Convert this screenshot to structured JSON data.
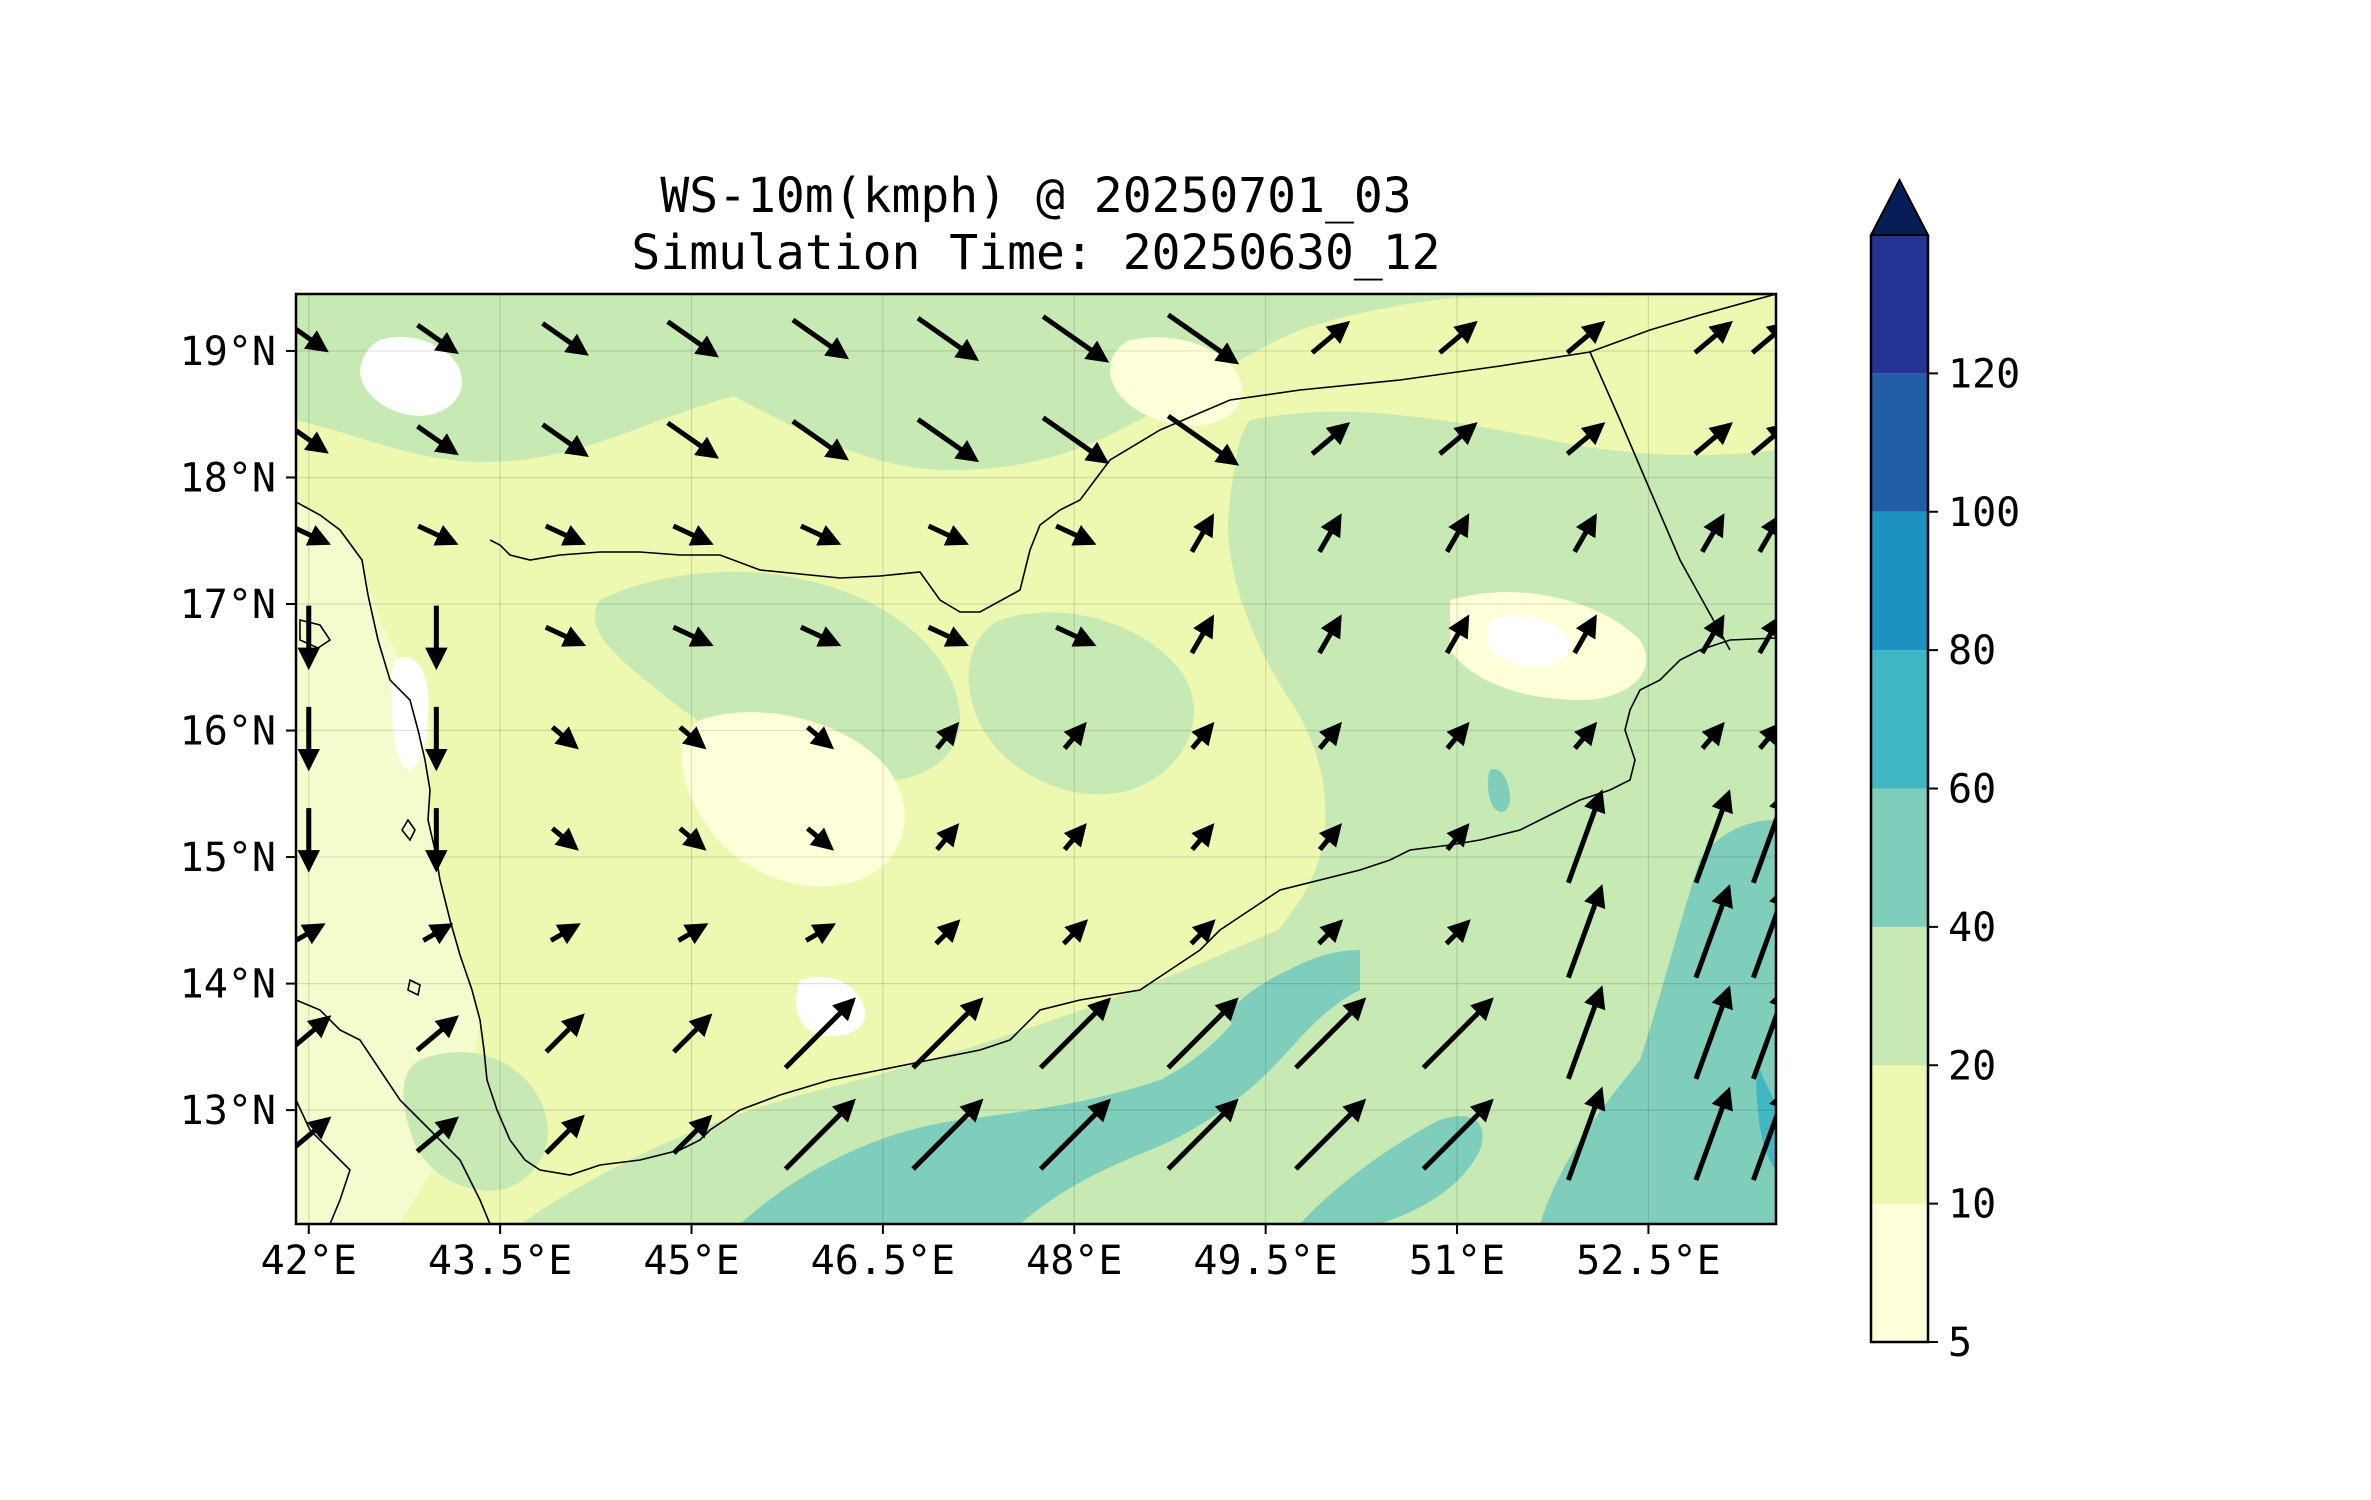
{
  "title": {
    "line1": "WS-10m(kmph) @ 20250701_03",
    "line2": "Simulation Time: 20250630_12"
  },
  "map": {
    "lon_range": [
      41.9,
      53.5
    ],
    "lat_range": [
      12.1,
      19.45
    ],
    "lon_ticks": [
      "42°E",
      "43.5°E",
      "45°E",
      "46.5°E",
      "48°E",
      "49.5°E",
      "51°E",
      "52.5°E"
    ],
    "lat_ticks": [
      "19°N",
      "18°N",
      "17°N",
      "16°N",
      "15°N",
      "14°N",
      "13°N"
    ],
    "gridlines": true
  },
  "colorbar": {
    "levels": [
      "5",
      "10",
      "20",
      "40",
      "60",
      "80",
      "100",
      "120"
    ],
    "colors": [
      "#ffffd9",
      "#edf8b1",
      "#c7e9b4",
      "#7fcdbb",
      "#41b6c4",
      "#1d91c0",
      "#225ea8",
      "#253494"
    ],
    "extend_color": "#081d58",
    "extend": "max"
  },
  "colors": {
    "land_base": "#edf8b1",
    "water": "#f0f9c8",
    "mid": "#c7e9b4",
    "high": "#7fcdbb",
    "peak": "#41b6c4",
    "calm": "#ffffff"
  }
}
